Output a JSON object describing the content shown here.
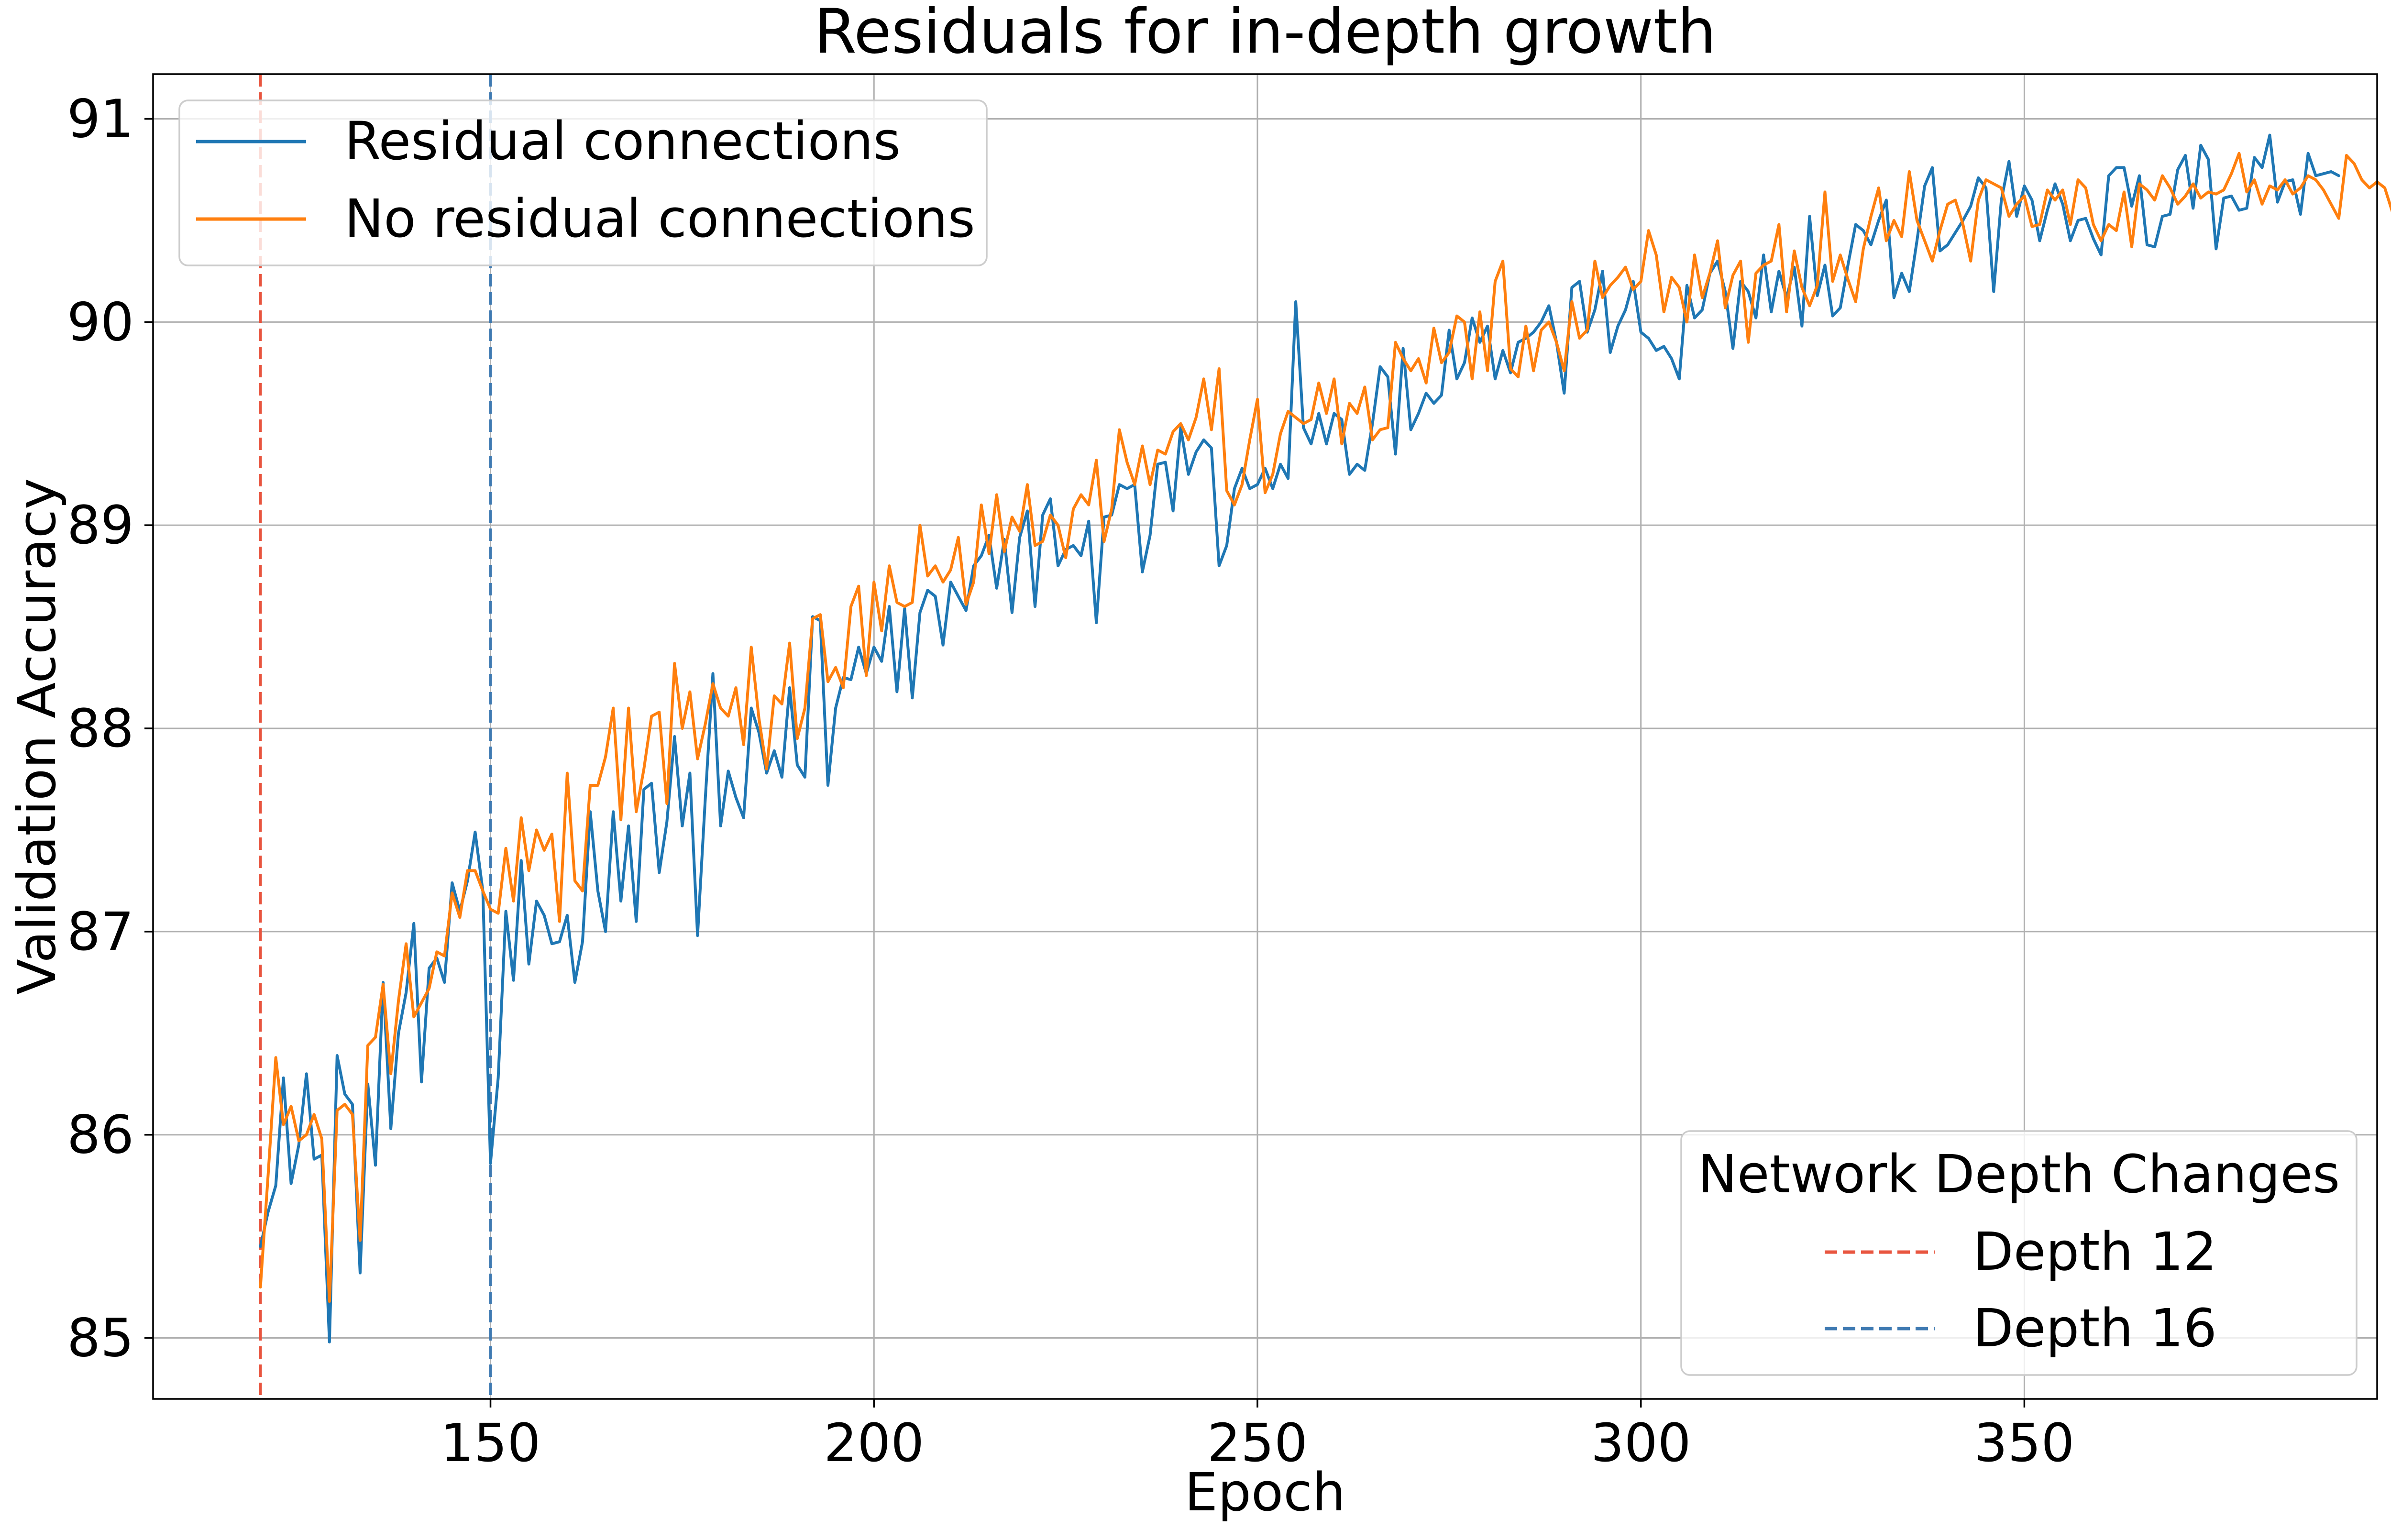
{
  "chart_data": {
    "type": "line",
    "title": "Residuals for in-depth growth",
    "xlabel": "Epoch",
    "ylabel": "Validation Accuracy",
    "xlim": [
      106,
      396
    ],
    "ylim": [
      84.7,
      91.22
    ],
    "xticks": [
      150,
      200,
      250,
      300,
      350
    ],
    "yticks": [
      85,
      86,
      87,
      88,
      89,
      90,
      91
    ],
    "xtick_labels": [
      "150",
      "200",
      "250",
      "300",
      "350"
    ],
    "ytick_labels": [
      "85",
      "86",
      "87",
      "88",
      "89",
      "90",
      "91"
    ],
    "grid": true,
    "legend_series_placement": "top-left",
    "legend_depth_placement": "bottom-right",
    "depth_legend_title": "Network Depth Changes",
    "depth_markers": [
      {
        "name": "Depth 12",
        "epoch": 120,
        "color": "#e8553f"
      },
      {
        "name": "Depth 16",
        "epoch": 150,
        "color": "#3f7ab2"
      }
    ],
    "series": [
      {
        "name": "Residual connections",
        "color": "#1f77b4",
        "x_start": 120,
        "values": [
          85.45,
          85.62,
          85.75,
          86.28,
          85.76,
          85.95,
          86.3,
          85.88,
          85.9,
          84.98,
          86.39,
          86.2,
          86.15,
          85.32,
          86.25,
          85.85,
          86.75,
          86.03,
          86.5,
          86.7,
          87.04,
          86.26,
          86.82,
          86.87,
          86.75,
          87.24,
          87.1,
          87.25,
          87.49,
          87.2,
          85.86,
          86.28,
          87.1,
          86.76,
          87.35,
          86.84,
          87.15,
          87.08,
          86.94,
          86.95,
          87.08,
          86.75,
          86.95,
          87.59,
          87.2,
          87.0,
          87.59,
          87.15,
          87.52,
          87.05,
          87.7,
          87.73,
          87.29,
          87.54,
          87.96,
          87.52,
          87.78,
          86.98,
          87.65,
          88.27,
          87.52,
          87.79,
          87.66,
          87.56,
          88.1,
          87.98,
          87.78,
          87.89,
          87.76,
          88.2,
          87.82,
          87.76,
          88.55,
          88.53,
          87.72,
          88.1,
          88.25,
          88.24,
          88.4,
          88.27,
          88.4,
          88.33,
          88.6,
          88.18,
          88.59,
          88.15,
          88.57,
          88.68,
          88.65,
          88.41,
          88.72,
          88.65,
          88.58,
          88.8,
          88.85,
          88.95,
          88.69,
          88.93,
          88.57,
          88.94,
          89.07,
          88.6,
          89.05,
          89.13,
          88.8,
          88.88,
          88.9,
          88.85,
          89.02,
          88.52,
          89.04,
          89.05,
          89.2,
          89.18,
          89.2,
          88.77,
          88.95,
          89.3,
          89.31,
          89.07,
          89.48,
          89.25,
          89.36,
          89.42,
          89.38,
          88.8,
          88.9,
          89.18,
          89.28,
          89.18,
          89.2,
          89.28,
          89.18,
          89.3,
          89.23,
          90.1,
          89.48,
          89.4,
          89.55,
          89.4,
          89.55,
          89.52,
          89.25,
          89.3,
          89.27,
          89.5,
          89.78,
          89.73,
          89.35,
          89.87,
          89.47,
          89.55,
          89.65,
          89.6,
          89.64,
          89.96,
          89.72,
          89.8,
          90.02,
          89.9,
          89.98,
          89.72,
          89.86,
          89.75,
          89.9,
          89.92,
          89.95,
          90.0,
          90.08,
          89.9,
          89.65,
          90.17,
          90.2,
          89.95,
          90.06,
          90.25,
          89.85,
          89.98,
          90.06,
          90.2,
          89.95,
          89.92,
          89.86,
          89.88,
          89.82,
          89.72,
          90.18,
          90.02,
          90.06,
          90.24,
          90.3,
          90.15,
          89.87,
          90.2,
          90.15,
          90.02,
          90.33,
          90.05,
          90.25,
          90.12,
          90.27,
          89.98,
          90.52,
          90.13,
          90.28,
          90.03,
          90.07,
          90.28,
          90.48,
          90.45,
          90.38,
          90.5,
          90.6,
          90.12,
          90.24,
          90.15,
          90.4,
          90.67,
          90.76,
          90.35,
          90.38,
          90.44,
          90.5,
          90.57,
          90.71,
          90.66,
          90.15,
          90.6,
          90.79,
          90.52,
          90.67,
          90.6,
          90.4,
          90.55,
          90.68,
          90.58,
          90.4,
          90.5,
          90.51,
          90.41,
          90.33,
          90.72,
          90.76,
          90.76,
          90.57,
          90.72,
          90.38,
          90.37,
          90.52,
          90.53,
          90.75,
          90.82,
          90.56,
          90.87,
          90.8,
          90.36,
          90.61,
          90.62,
          90.55,
          90.56,
          90.81,
          90.76,
          90.92,
          90.59,
          90.69,
          90.7,
          90.53,
          90.83,
          90.72,
          90.73,
          90.74,
          90.72
        ]
      },
      {
        "name": "No residual connections",
        "color": "#ff7f0e",
        "x_start": 120,
        "values": [
          85.25,
          85.8,
          86.38,
          86.05,
          86.14,
          85.97,
          86.0,
          86.1,
          85.98,
          85.18,
          86.12,
          86.15,
          86.1,
          85.48,
          86.44,
          86.48,
          86.74,
          86.3,
          86.66,
          86.94,
          86.58,
          86.65,
          86.72,
          86.9,
          86.88,
          87.19,
          87.07,
          87.3,
          87.3,
          87.2,
          87.11,
          87.09,
          87.41,
          87.15,
          87.56,
          87.3,
          87.5,
          87.4,
          87.48,
          87.05,
          87.78,
          87.25,
          87.2,
          87.72,
          87.72,
          87.86,
          88.1,
          87.55,
          88.1,
          87.59,
          87.8,
          88.06,
          88.08,
          87.63,
          88.32,
          88.0,
          88.18,
          87.85,
          88.02,
          88.22,
          88.1,
          88.06,
          88.2,
          87.92,
          88.4,
          88.05,
          87.8,
          88.16,
          88.12,
          88.42,
          87.95,
          88.1,
          88.54,
          88.56,
          88.23,
          88.3,
          88.2,
          88.6,
          88.7,
          88.26,
          88.72,
          88.48,
          88.8,
          88.62,
          88.6,
          88.62,
          89.0,
          88.75,
          88.8,
          88.72,
          88.78,
          88.94,
          88.61,
          88.72,
          89.1,
          88.86,
          89.15,
          88.87,
          89.04,
          88.97,
          89.2,
          88.9,
          88.92,
          89.05,
          89.0,
          88.84,
          89.08,
          89.15,
          89.1,
          89.32,
          88.92,
          89.08,
          89.47,
          89.31,
          89.2,
          89.39,
          89.2,
          89.37,
          89.35,
          89.46,
          89.5,
          89.42,
          89.53,
          89.72,
          89.47,
          89.77,
          89.17,
          89.1,
          89.2,
          89.42,
          89.62,
          89.16,
          89.25,
          89.45,
          89.56,
          89.53,
          89.5,
          89.52,
          89.7,
          89.55,
          89.72,
          89.4,
          89.6,
          89.55,
          89.68,
          89.42,
          89.47,
          89.48,
          89.9,
          89.82,
          89.76,
          89.82,
          89.7,
          89.97,
          89.8,
          89.85,
          90.03,
          90.0,
          89.72,
          90.05,
          89.76,
          90.2,
          90.3,
          89.77,
          89.73,
          89.98,
          89.76,
          89.96,
          90.0,
          89.9,
          89.76,
          90.1,
          89.92,
          89.96,
          90.3,
          90.12,
          90.18,
          90.22,
          90.27,
          90.16,
          90.2,
          90.45,
          90.33,
          90.05,
          90.22,
          90.17,
          90.0,
          90.33,
          90.12,
          90.24,
          90.4,
          90.07,
          90.23,
          90.3,
          89.9,
          90.24,
          90.28,
          90.3,
          90.48,
          90.05,
          90.35,
          90.17,
          90.08,
          90.18,
          90.64,
          90.2,
          90.33,
          90.21,
          90.1,
          90.36,
          90.52,
          90.66,
          90.4,
          90.5,
          90.42,
          90.74,
          90.5,
          90.4,
          90.3,
          90.45,
          90.58,
          90.6,
          90.48,
          90.3,
          90.6,
          90.7,
          90.68,
          90.66,
          90.52,
          90.58,
          90.62,
          90.47,
          90.48,
          90.65,
          90.6,
          90.65,
          90.48,
          90.7,
          90.66,
          90.48,
          90.4,
          90.48,
          90.45,
          90.64,
          90.37,
          90.68,
          90.65,
          90.6,
          90.72,
          90.66,
          90.58,
          90.62,
          90.68,
          90.61,
          90.64,
          90.63,
          90.65,
          90.73,
          90.83,
          90.64,
          90.7,
          90.58,
          90.67,
          90.65,
          90.7,
          90.63,
          90.66,
          90.72,
          90.7,
          90.65,
          90.58,
          90.51,
          90.82,
          90.78,
          90.7,
          90.66,
          90.69,
          90.66,
          90.54,
          90.8,
          90.73
        ]
      }
    ]
  }
}
